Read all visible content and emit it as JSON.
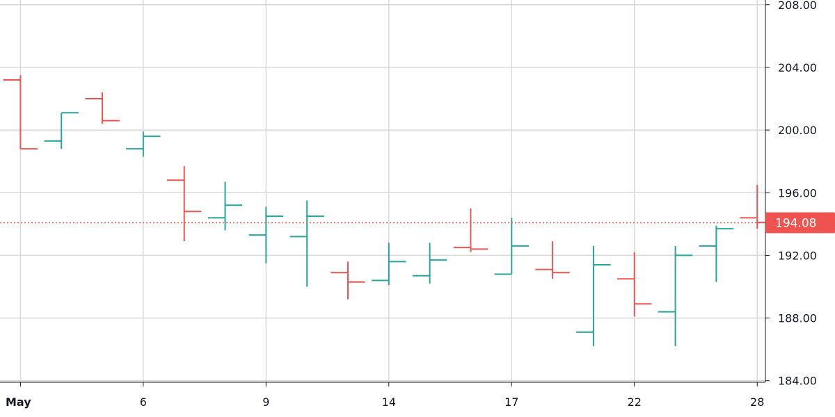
{
  "chart_data": {
    "type": "ohlc",
    "colors": {
      "up": "#26a69a",
      "down": "#ef5350",
      "grid": "#d9d9d9",
      "axis": "#131722",
      "background": "#ffffff"
    },
    "grid": true,
    "y_axis": {
      "position": "right",
      "range": [
        183.9,
        208.3
      ],
      "ticks": [
        184,
        188,
        192,
        196,
        200,
        204,
        208
      ],
      "tick_labels": [
        "184.00",
        "188.00",
        "192.00",
        "196.00",
        "200.00",
        "204.00",
        "208.00"
      ]
    },
    "x_axis": {
      "range": [
        0.5,
        19.2
      ],
      "ticks": [
        1,
        4,
        7,
        10,
        13,
        16,
        19
      ],
      "tick_labels": [
        "May",
        "6",
        "9",
        "14",
        "17",
        "22",
        "28"
      ]
    },
    "last_price": {
      "value": 194.08,
      "label": "194.08",
      "color": "#ef5350"
    },
    "bars": [
      {
        "x": 1,
        "open": 203.2,
        "high": 203.5,
        "low": 198.8,
        "close": 198.8
      },
      {
        "x": 2,
        "open": 199.3,
        "high": 201.1,
        "low": 198.8,
        "close": 201.1
      },
      {
        "x": 3,
        "open": 202.0,
        "high": 202.4,
        "low": 200.4,
        "close": 200.6
      },
      {
        "x": 4,
        "open": 198.8,
        "high": 199.9,
        "low": 198.3,
        "close": 199.6
      },
      {
        "x": 5,
        "open": 196.8,
        "high": 197.7,
        "low": 192.9,
        "close": 194.8
      },
      {
        "x": 6,
        "open": 194.4,
        "high": 196.7,
        "low": 193.6,
        "close": 195.2
      },
      {
        "x": 7,
        "open": 193.3,
        "high": 195.1,
        "low": 191.5,
        "close": 194.5
      },
      {
        "x": 8,
        "open": 193.2,
        "high": 195.5,
        "low": 190.0,
        "close": 194.5
      },
      {
        "x": 9,
        "open": 190.9,
        "high": 191.6,
        "low": 189.2,
        "close": 190.3
      },
      {
        "x": 10,
        "open": 190.4,
        "high": 192.8,
        "low": 190.1,
        "close": 191.6
      },
      {
        "x": 11,
        "open": 190.7,
        "high": 192.8,
        "low": 190.2,
        "close": 191.7
      },
      {
        "x": 12,
        "open": 192.5,
        "high": 195.0,
        "low": 192.2,
        "close": 192.4
      },
      {
        "x": 13,
        "open": 190.8,
        "high": 194.4,
        "low": 190.8,
        "close": 192.6
      },
      {
        "x": 14,
        "open": 191.1,
        "high": 192.9,
        "low": 190.5,
        "close": 190.9
      },
      {
        "x": 15,
        "open": 187.1,
        "high": 192.6,
        "low": 186.2,
        "close": 191.4
      },
      {
        "x": 16,
        "open": 190.5,
        "high": 192.2,
        "low": 188.1,
        "close": 188.9
      },
      {
        "x": 17,
        "open": 188.4,
        "high": 192.6,
        "low": 186.2,
        "close": 192.0
      },
      {
        "x": 18,
        "open": 192.6,
        "high": 193.9,
        "low": 190.3,
        "close": 193.7
      },
      {
        "x": 19,
        "open": 194.4,
        "high": 196.5,
        "low": 193.7,
        "close": 194.1
      }
    ]
  }
}
